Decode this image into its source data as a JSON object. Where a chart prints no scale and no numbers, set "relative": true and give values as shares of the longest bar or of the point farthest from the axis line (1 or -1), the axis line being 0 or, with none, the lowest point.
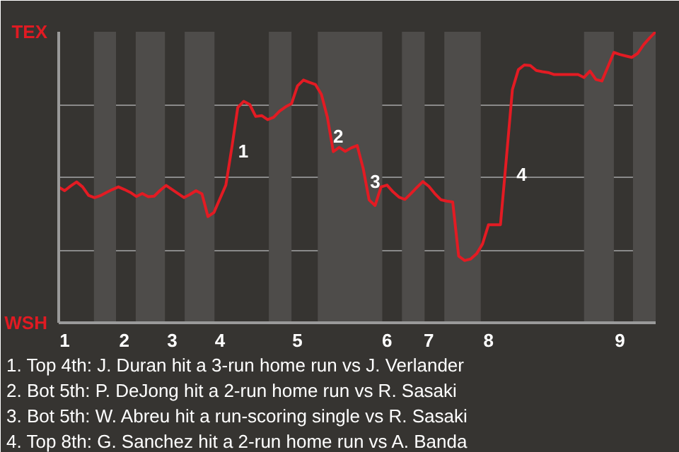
{
  "chart_data": {
    "type": "line",
    "relative": true,
    "categories": [
      null,
      "1",
      null,
      null,
      null,
      null,
      null,
      null,
      null,
      null,
      null,
      "2",
      null,
      null,
      null,
      null,
      null,
      null,
      null,
      "3",
      null,
      null,
      null,
      null,
      null,
      null,
      null,
      "4",
      null,
      null,
      null,
      null,
      null,
      null,
      null,
      null,
      null,
      null,
      null,
      null,
      "5",
      null,
      null,
      null,
      null,
      null,
      null,
      null,
      null,
      null,
      null,
      null,
      null,
      null,
      null,
      "6",
      null,
      null,
      null,
      null,
      null,
      null,
      "7",
      null,
      null,
      null,
      null,
      null,
      null,
      null,
      null,
      null,
      "8",
      null,
      null,
      null,
      null,
      null,
      null,
      null,
      null,
      null,
      null,
      null,
      null,
      null,
      null,
      null,
      null,
      null,
      null,
      null,
      null,
      null,
      "9",
      null,
      null,
      null,
      null,
      null,
      null
    ],
    "series": [
      {
        "color": "#e31b23",
        "values": [
          0.466,
          0.454,
          0.47,
          0.484,
          0.467,
          0.438,
          0.43,
          0.437,
          0.448,
          0.458,
          0.467,
          0.458,
          0.448,
          0.434,
          0.444,
          0.433,
          0.435,
          0.455,
          0.472,
          0.458,
          0.444,
          0.43,
          0.441,
          0.454,
          0.443,
          0.365,
          0.379,
          0.426,
          0.473,
          0.602,
          0.74,
          0.761,
          0.75,
          0.709,
          0.712,
          0.698,
          0.706,
          0.727,
          0.742,
          0.753,
          0.814,
          0.834,
          0.826,
          0.819,
          0.785,
          0.707,
          0.588,
          0.603,
          0.589,
          0.601,
          0.609,
          0.531,
          0.422,
          0.403,
          0.467,
          0.473,
          0.45,
          0.432,
          0.424,
          0.444,
          0.465,
          0.485,
          0.469,
          0.444,
          0.423,
          0.418,
          0.415,
          0.229,
          0.214,
          0.219,
          0.237,
          0.271,
          0.337,
          0.337,
          0.337,
          0.567,
          0.801,
          0.87,
          0.886,
          0.884,
          0.867,
          0.863,
          0.86,
          0.853,
          0.853,
          0.853,
          0.853,
          0.853,
          0.843,
          0.865,
          0.836,
          0.831,
          0.88,
          0.929,
          0.922,
          0.917,
          0.912,
          0.926,
          0.956,
          0.979,
          1.0
        ]
      }
    ],
    "grid": "y",
    "annotations": [
      "TEX",
      "WSH",
      "1",
      "2",
      "3",
      "4",
      "1. Top 4th: J. Duran hit a 3-run home run vs J. Verlander",
      "2. Bot 5th: P. DeJong hit a 2-run home run vs R. Sasaki",
      "3. Bot 5th: W. Abreu hit a run-scoring single vs R. Sasaki",
      "4. Top 8th: G. Sanchez hit a 2-run home run vs A. Banda"
    ]
  }
}
